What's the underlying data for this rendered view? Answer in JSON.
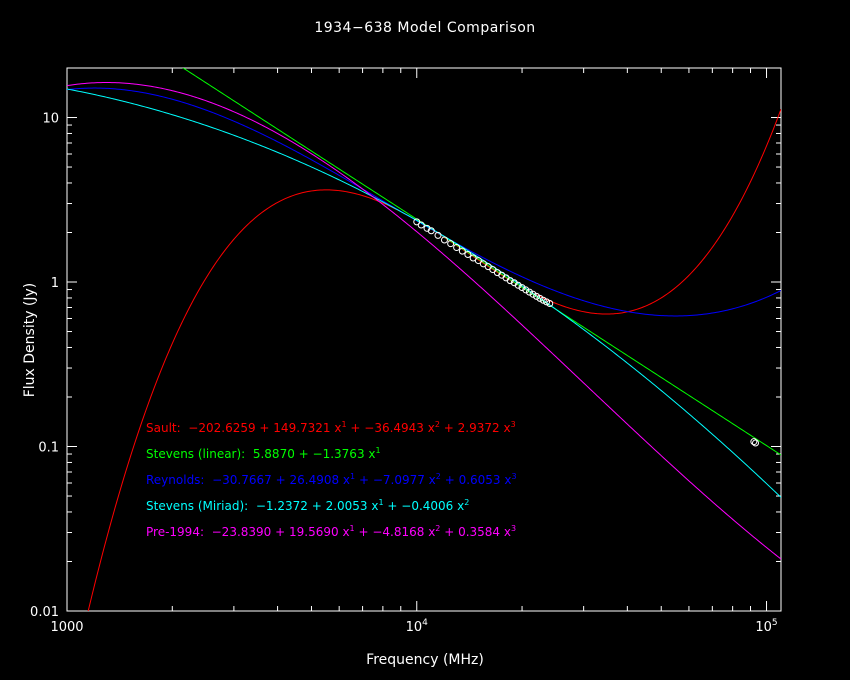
{
  "chart_data": {
    "type": "line",
    "title": "1934−638 Model Comparison",
    "xlabel": "Frequency (MHz)",
    "ylabel": "Flux Density (Jy)",
    "xscale": "log",
    "yscale": "log",
    "xlim": [
      1000,
      110000
    ],
    "ylim": [
      0.01,
      20
    ],
    "xticks": [
      {
        "value": 1000,
        "label": "1000"
      },
      {
        "value": 10000,
        "label": "10",
        "exp": "4"
      },
      {
        "value": 100000,
        "label": "10",
        "exp": "5"
      }
    ],
    "yticks": [
      {
        "value": 0.01,
        "label": "0.01"
      },
      {
        "value": 0.1,
        "label": "0.1"
      },
      {
        "value": 1,
        "label": "1"
      },
      {
        "value": 10,
        "label": "10"
      }
    ],
    "series": [
      {
        "name": "Sault",
        "color": "#ff0000",
        "coefficients": [
          -202.6259,
          149.7321,
          -36.4943,
          2.9372
        ],
        "label_terms": [
          "−202.6259",
          "149.7321",
          "−36.4943",
          "2.9372"
        ]
      },
      {
        "name": "Stevens (linear)",
        "color": "#00ff00",
        "coefficients": [
          5.887,
          -1.3763
        ],
        "label_terms": [
          "5.8870",
          "−1.3763"
        ]
      },
      {
        "name": "Reynolds",
        "color": "#0000ff",
        "coefficients": [
          -30.7667,
          26.4908,
          -7.0977,
          0.6053
        ],
        "label_terms": [
          "−30.7667",
          "26.4908",
          "−7.0977",
          "0.6053"
        ]
      },
      {
        "name": "Stevens (Miriad)",
        "color": "#00ffff",
        "coefficients": [
          -1.2372,
          2.0053,
          -0.4006
        ],
        "label_terms": [
          "−1.2372",
          "2.0053",
          "−0.4006"
        ]
      },
      {
        "name": "Pre-1994",
        "color": "#ff00ff",
        "coefficients": [
          -23.839,
          19.569,
          -4.8168,
          0.3584
        ],
        "label_terms": [
          "−23.8390",
          "19.5690",
          "−4.8168",
          "0.3584"
        ]
      }
    ],
    "points": [
      {
        "x": 10000,
        "y": 2.32
      },
      {
        "x": 10300,
        "y": 2.22
      },
      {
        "x": 10700,
        "y": 2.12
      },
      {
        "x": 11000,
        "y": 2.05
      },
      {
        "x": 11500,
        "y": 1.92
      },
      {
        "x": 12000,
        "y": 1.8
      },
      {
        "x": 12500,
        "y": 1.71
      },
      {
        "x": 13000,
        "y": 1.62
      },
      {
        "x": 13500,
        "y": 1.54
      },
      {
        "x": 14000,
        "y": 1.47
      },
      {
        "x": 14500,
        "y": 1.4
      },
      {
        "x": 15000,
        "y": 1.35
      },
      {
        "x": 15500,
        "y": 1.29
      },
      {
        "x": 16000,
        "y": 1.24
      },
      {
        "x": 16500,
        "y": 1.19
      },
      {
        "x": 17000,
        "y": 1.14
      },
      {
        "x": 17500,
        "y": 1.1
      },
      {
        "x": 18000,
        "y": 1.06
      },
      {
        "x": 18500,
        "y": 1.02
      },
      {
        "x": 19000,
        "y": 0.99
      },
      {
        "x": 19500,
        "y": 0.955
      },
      {
        "x": 20000,
        "y": 0.925
      },
      {
        "x": 20500,
        "y": 0.895
      },
      {
        "x": 21000,
        "y": 0.868
      },
      {
        "x": 21500,
        "y": 0.842
      },
      {
        "x": 22000,
        "y": 0.818
      },
      {
        "x": 22500,
        "y": 0.795
      },
      {
        "x": 23000,
        "y": 0.775
      },
      {
        "x": 23500,
        "y": 0.757
      },
      {
        "x": 24000,
        "y": 0.74
      },
      {
        "x": 92000,
        "y": 0.107
      },
      {
        "x": 93000,
        "y": 0.105
      }
    ]
  }
}
